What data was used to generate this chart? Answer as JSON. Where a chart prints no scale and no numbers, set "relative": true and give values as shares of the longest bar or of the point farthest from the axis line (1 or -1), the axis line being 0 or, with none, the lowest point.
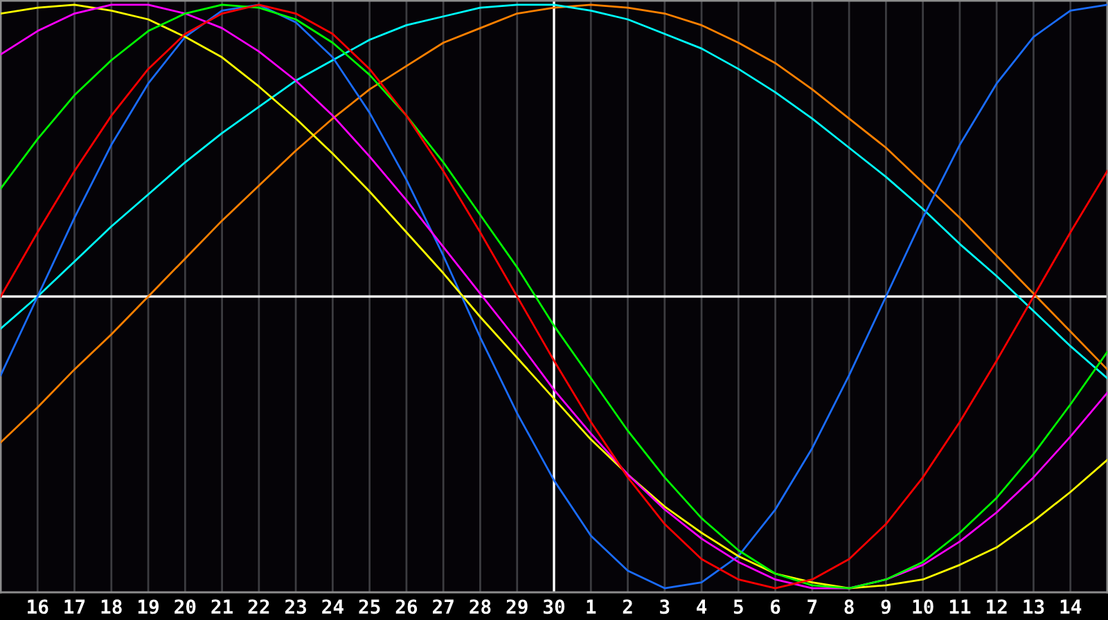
{
  "chart_data": {
    "type": "line",
    "relative": true,
    "grid": "x",
    "tick_labels": "x",
    "categories": [
      null,
      "16",
      "17",
      "18",
      "19",
      "20",
      "21",
      "22",
      "23",
      "24",
      "25",
      "26",
      "27",
      "28",
      "29",
      "30",
      "1",
      "2",
      "3",
      "4",
      "5",
      "6",
      "7",
      "8",
      "9",
      "10",
      "11",
      "12",
      "13",
      "14",
      null
    ],
    "ref_lines": [
      {
        "axis": "x",
        "value": "30",
        "color": "#ffffff"
      }
    ],
    "series": [
      {
        "color": "#ff8000",
        "values": [
          -0.5,
          -0.38,
          -0.25,
          -0.13,
          0,
          0.13,
          0.26,
          0.38,
          0.5,
          0.61,
          0.71,
          0.79,
          0.87,
          0.92,
          0.97,
          0.99,
          1,
          0.99,
          0.97,
          0.93,
          0.87,
          0.8,
          0.71,
          0.61,
          0.51,
          0.39,
          0.27,
          0.14,
          0.01,
          -0.12,
          -0.25
        ]
      },
      {
        "color": "#00ffff",
        "values": [
          -0.11,
          0,
          0.12,
          0.24,
          0.35,
          0.46,
          0.56,
          0.65,
          0.74,
          0.81,
          0.88,
          0.93,
          0.96,
          0.99,
          1,
          1,
          0.98,
          0.95,
          0.9,
          0.85,
          0.78,
          0.7,
          0.61,
          0.51,
          0.41,
          0.3,
          0.18,
          0.07,
          -0.05,
          -0.17,
          -0.28
        ]
      },
      {
        "color": "#1a6cff",
        "values": [
          -0.27,
          0,
          0.27,
          0.52,
          0.73,
          0.89,
          0.98,
          1,
          0.94,
          0.82,
          0.63,
          0.4,
          0.14,
          -0.14,
          -0.4,
          -0.63,
          -0.82,
          -0.94,
          -1,
          -0.98,
          -0.89,
          -0.73,
          -0.52,
          -0.27,
          0,
          0.27,
          0.52,
          0.73,
          0.89,
          0.98,
          1
        ]
      },
      {
        "color": "#ffff00",
        "values": [
          0.97,
          0.99,
          1,
          0.98,
          0.95,
          0.89,
          0.82,
          0.72,
          0.61,
          0.49,
          0.36,
          0.22,
          0.08,
          -0.07,
          -0.21,
          -0.35,
          -0.49,
          -0.61,
          -0.72,
          -0.81,
          -0.89,
          -0.95,
          -0.98,
          -1,
          -0.99,
          -0.97,
          -0.92,
          -0.86,
          -0.77,
          -0.67,
          -0.56
        ]
      },
      {
        "color": "#ff00ff",
        "values": [
          0.83,
          0.91,
          0.97,
          1,
          1,
          0.97,
          0.92,
          0.84,
          0.74,
          0.62,
          0.48,
          0.33,
          0.17,
          0.01,
          -0.15,
          -0.32,
          -0.47,
          -0.61,
          -0.73,
          -0.83,
          -0.91,
          -0.97,
          -1,
          -1,
          -0.97,
          -0.92,
          -0.84,
          -0.74,
          -0.62,
          -0.48,
          -0.33
        ]
      },
      {
        "color": "#00ff00",
        "values": [
          0.37,
          0.54,
          0.69,
          0.81,
          0.91,
          0.97,
          1,
          0.99,
          0.95,
          0.87,
          0.76,
          0.62,
          0.46,
          0.28,
          0.1,
          -0.1,
          -0.28,
          -0.46,
          -0.62,
          -0.76,
          -0.87,
          -0.95,
          -0.99,
          -1,
          -0.97,
          -0.91,
          -0.81,
          -0.69,
          -0.54,
          -0.37,
          -0.19
        ]
      },
      {
        "color": "#ff0000",
        "values": [
          0,
          0.22,
          0.43,
          0.62,
          0.78,
          0.9,
          0.97,
          1,
          0.97,
          0.9,
          0.78,
          0.62,
          0.43,
          0.22,
          0,
          -0.22,
          -0.43,
          -0.62,
          -0.78,
          -0.9,
          -0.97,
          -1,
          -0.97,
          -0.9,
          -0.78,
          -0.62,
          -0.43,
          -0.22,
          0,
          0.22,
          0.43
        ]
      }
    ]
  }
}
